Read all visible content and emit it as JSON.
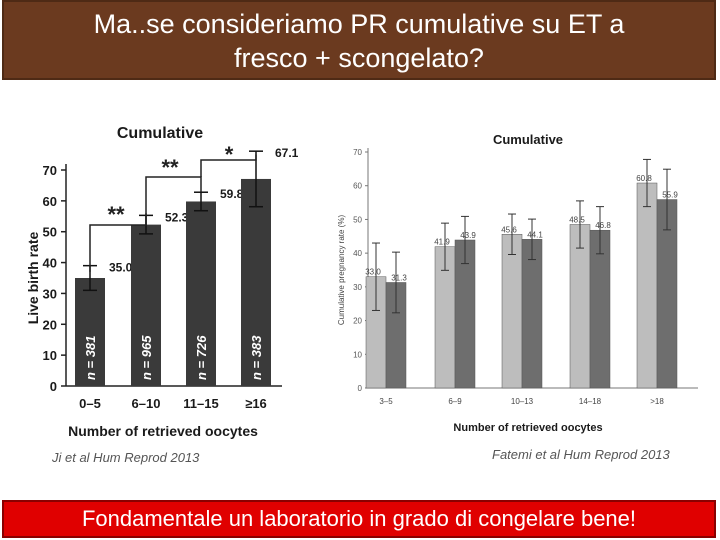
{
  "slide": {
    "title_line1": "Ma..se consideriamo PR cumulative su ET a",
    "title_line2": "fresco + scongelato?",
    "footer": "Fondamentale un laboratorio in grado di congelare bene!",
    "caption_left": "Ji et al Hum Reprod 2013",
    "caption_right": "Fatemi et al Hum Reprod 2013",
    "colors": {
      "title_bg": "#6b3a1f",
      "footer_bg": "#e00000"
    }
  },
  "chart_data": [
    {
      "type": "bar",
      "title": "Cumulative",
      "xlabel": "Number of retrieved oocytes",
      "ylabel": "Live birth rate",
      "categories": [
        "0–5",
        "6–10",
        "11–15",
        "≥16"
      ],
      "values": [
        35.0,
        52.3,
        59.8,
        67.1
      ],
      "value_labels": [
        "35.0",
        "52.3",
        "59.8",
        "67.1"
      ],
      "error": [
        4,
        3,
        3,
        9
      ],
      "n_labels": [
        "n = 381",
        "n = 965",
        "n = 726",
        "n = 383"
      ],
      "yticks": [
        "0",
        "10",
        "20",
        "30",
        "40",
        "50",
        "60",
        "70"
      ],
      "ylim": [
        0,
        70
      ],
      "significance": [
        {
          "from": 0,
          "to": 1,
          "label": "**"
        },
        {
          "from": 1,
          "to": 2,
          "label": "**"
        },
        {
          "from": 2,
          "to": 3,
          "label": "*"
        }
      ],
      "colors": {
        "bar": "#3a3a3a"
      }
    },
    {
      "type": "bar",
      "title": "Cumulative",
      "xlabel": "Number of retrieved oocytes",
      "ylabel": "Cumulative pregnancy rate (%)",
      "categories": [
        "3–5",
        "6–9",
        "10–13",
        "14–18",
        ">18"
      ],
      "yticks": [
        "0",
        "10",
        "20",
        "30",
        "40",
        "50",
        "60",
        "70"
      ],
      "ylim": [
        0,
        70
      ],
      "series": [
        {
          "values": [
            33.0,
            41.9,
            45.6,
            48.5,
            60.8
          ],
          "labels": [
            "33.0",
            "41.9",
            "45.6",
            "48.5",
            "60.8"
          ],
          "error": [
            10,
            7,
            6,
            7,
            7
          ]
        },
        {
          "values": [
            31.3,
            43.9,
            44.1,
            46.8,
            55.9
          ],
          "labels": [
            "31.3",
            "43.9",
            "44.1",
            "46.8",
            "55.9"
          ],
          "error": [
            9,
            7,
            6,
            7,
            9
          ]
        }
      ],
      "colors": {
        "series1": "#bdbdbd",
        "series2": "#6e6e6e"
      }
    }
  ]
}
